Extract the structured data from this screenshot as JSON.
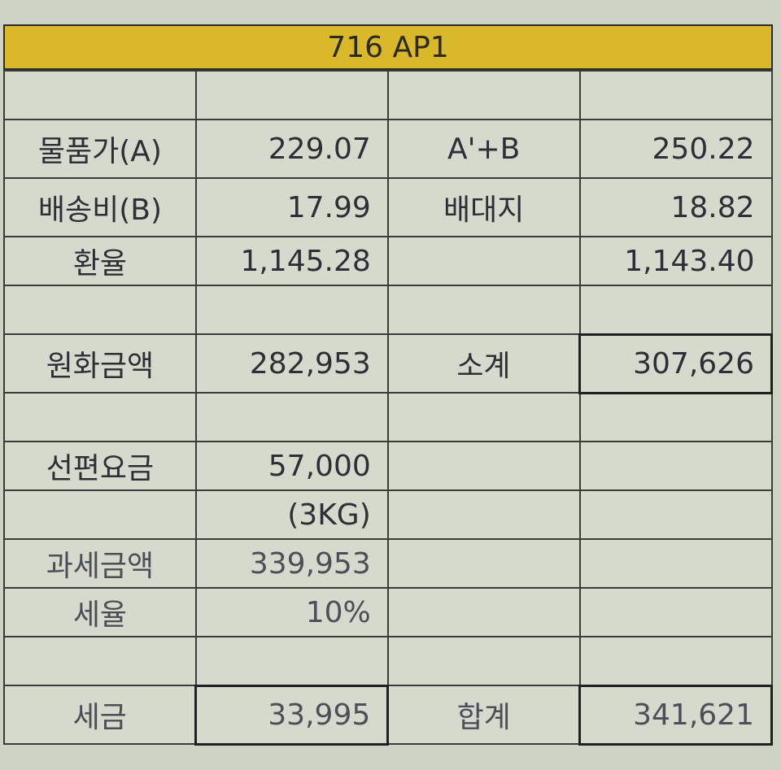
{
  "title": "716 AP1",
  "rows": [
    {
      "c1": "",
      "c2": "",
      "c3": "",
      "c4": ""
    },
    {
      "c1": "물품가(A)",
      "c2": "229.07",
      "c3": "A'+B",
      "c4": "250.22"
    },
    {
      "c1": "배송비(B)",
      "c2": "17.99",
      "c3": "배대지",
      "c4": "18.82"
    },
    {
      "c1": "환율",
      "c2": "1,145.28",
      "c3": "",
      "c4": "1,143.40"
    },
    {
      "c1": "",
      "c2": "",
      "c3": "",
      "c4": ""
    },
    {
      "c1": "원화금액",
      "c2": "282,953",
      "c3": "소계",
      "c4": "307,626"
    },
    {
      "c1": "",
      "c2": "",
      "c3": "",
      "c4": ""
    },
    {
      "c1": "선편요금",
      "c2": "57,000",
      "c3": "",
      "c4": ""
    },
    {
      "c1": "",
      "c2": "(3KG)",
      "c3": "",
      "c4": ""
    },
    {
      "c1": "과세금액",
      "c2": "339,953",
      "c3": "",
      "c4": ""
    },
    {
      "c1": "세율",
      "c2": "10%",
      "c3": "",
      "c4": ""
    },
    {
      "c1": "",
      "c2": "",
      "c3": "",
      "c4": ""
    },
    {
      "c1": "세금",
      "c2": "33,995",
      "c3": "합계",
      "c4": "341,621"
    }
  ]
}
